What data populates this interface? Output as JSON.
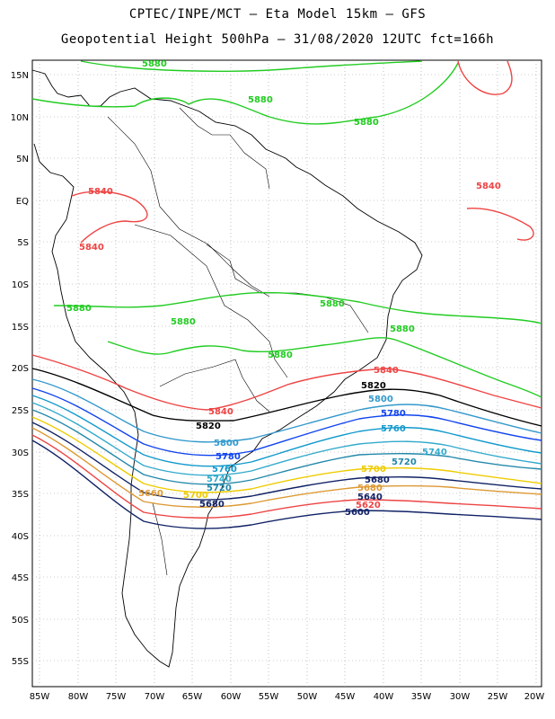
{
  "title_line1": "CPTEC/INPE/MCT –  Eta Model 15km – GFS",
  "title_line2": "Geopotential Height 500hPa – 31/08/2020 12UTC fct=166h",
  "lat_ticks": [
    "15N",
    "10N",
    "5N",
    "EQ",
    "5S",
    "10S",
    "15S",
    "20S",
    "25S",
    "30S",
    "35S",
    "40S",
    "45S",
    "50S",
    "55S"
  ],
  "lon_ticks": [
    "85W",
    "80W",
    "75W",
    "70W",
    "65W",
    "60W",
    "55W",
    "50W",
    "45W",
    "40W",
    "35W",
    "30W",
    "25W",
    "20W"
  ],
  "contour_labels": [
    {
      "text": "5880",
      "color": "#22cc22"
    },
    {
      "text": "5880",
      "color": "#22cc22"
    },
    {
      "text": "5880",
      "color": "#22cc22"
    },
    {
      "text": "5880",
      "color": "#22cc22"
    },
    {
      "text": "5880",
      "color": "#22cc22"
    },
    {
      "text": "5880",
      "color": "#22cc22"
    },
    {
      "text": "5880",
      "color": "#22cc22"
    },
    {
      "text": "5880",
      "color": "#22cc22"
    },
    {
      "text": "5840",
      "color": "#ee4444"
    },
    {
      "text": "5840",
      "color": "#ee4444"
    },
    {
      "text": "5840",
      "color": "#ee4444"
    },
    {
      "text": "5840",
      "color": "#ee4444"
    },
    {
      "text": "5840",
      "color": "#ee4444"
    },
    {
      "text": "5820",
      "color": "#000000"
    },
    {
      "text": "5820",
      "color": "#000000"
    },
    {
      "text": "5800",
      "color": "#3399cc"
    },
    {
      "text": "5800",
      "color": "#3399cc"
    },
    {
      "text": "5780",
      "color": "#1144ee"
    },
    {
      "text": "5780",
      "color": "#1144ee"
    },
    {
      "text": "5760",
      "color": "#1199cc"
    },
    {
      "text": "5760",
      "color": "#1199cc"
    },
    {
      "text": "5740",
      "color": "#33aacc"
    },
    {
      "text": "5740",
      "color": "#33aacc"
    },
    {
      "text": "5720",
      "color": "#2288aa"
    },
    {
      "text": "5720",
      "color": "#2288aa"
    },
    {
      "text": "5700",
      "color": "#eecc00"
    },
    {
      "text": "5700",
      "color": "#eecc00"
    },
    {
      "text": "5680",
      "color": "#dd9933"
    },
    {
      "text": "5660",
      "color": "#dd9933"
    },
    {
      "text": "5680",
      "color": "#112266"
    },
    {
      "text": "5680",
      "color": "#112266"
    },
    {
      "text": "5640",
      "color": "#112266"
    },
    {
      "text": "5620",
      "color": "#ee4444"
    },
    {
      "text": "5600",
      "color": "#112266"
    }
  ],
  "colors": {
    "green": "#22cc22",
    "red": "#ee4444",
    "black": "#000000",
    "blue": "#1144ee",
    "cyan": "#1199cc",
    "yellow": "#eecc00",
    "orange": "#dd9933",
    "navy": "#112266"
  }
}
